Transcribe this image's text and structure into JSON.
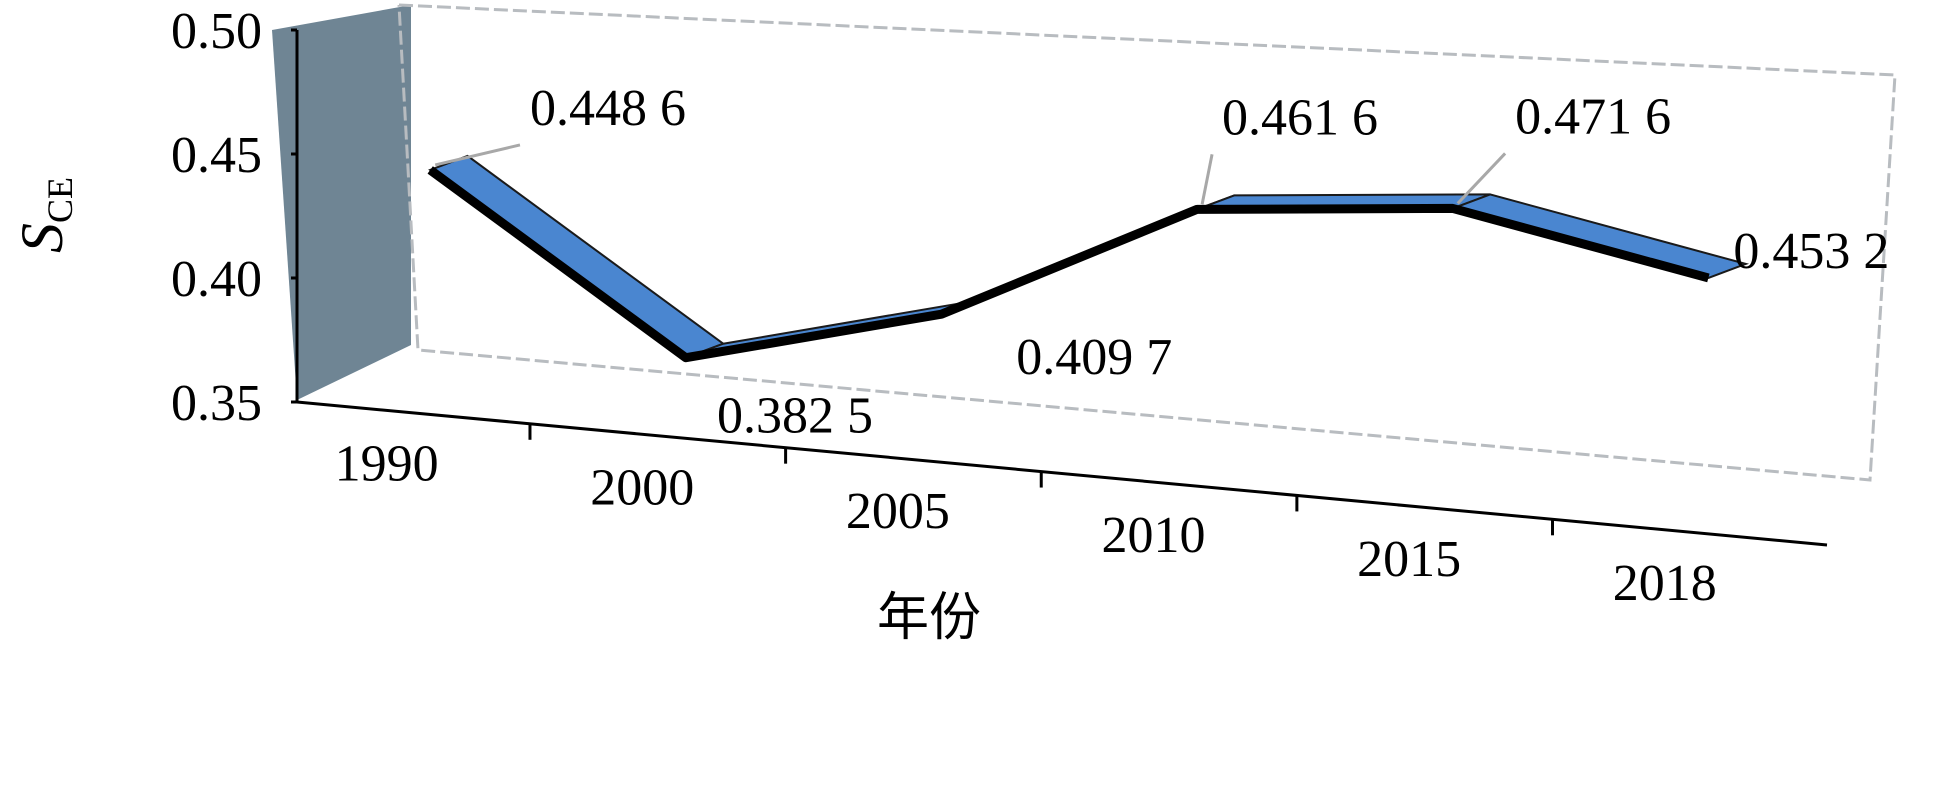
{
  "chart_data": {
    "type": "line3d",
    "y_label": "S",
    "y_label_sub": "CE",
    "x_label": "年份",
    "categories": [
      "1990",
      "2000",
      "2005",
      "2010",
      "2015",
      "2018"
    ],
    "values": [
      0.4486,
      0.3825,
      0.4097,
      0.4616,
      0.4716,
      0.4532
    ],
    "value_labels": [
      "0.448 6",
      "0.382 5",
      "0.409 7",
      "0.461 6",
      "0.471 6",
      "0.453 2"
    ],
    "color": "#4a86d0",
    "ylim": [
      0.35,
      0.5
    ],
    "yticks": [
      0.35,
      {
        "value": 0.4,
        "label": "0.40"
      },
      0.45,
      {
        "value": 0.5,
        "label": "0.50"
      }
    ]
  }
}
